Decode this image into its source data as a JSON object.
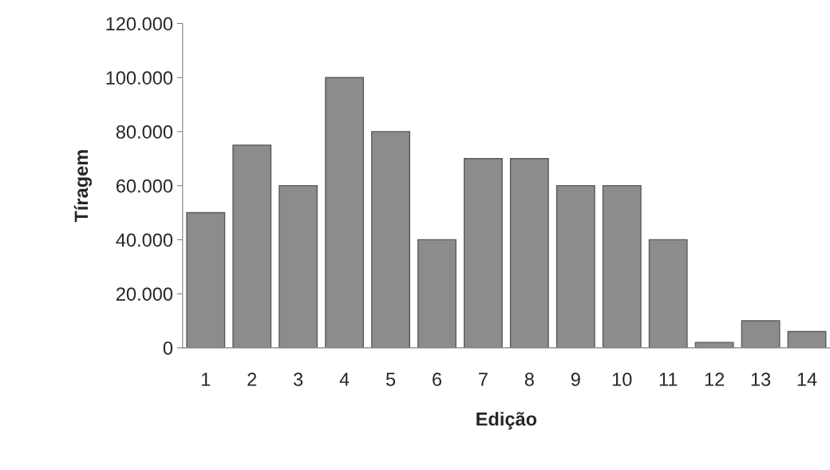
{
  "chart_data": {
    "type": "bar",
    "xlabel": "Edição",
    "ylabel": "Tíragem",
    "categories": [
      "1",
      "2",
      "3",
      "4",
      "5",
      "6",
      "7",
      "8",
      "9",
      "10",
      "11",
      "12",
      "13",
      "14"
    ],
    "values": [
      50000,
      75000,
      60000,
      100000,
      80000,
      40000,
      70000,
      70000,
      60000,
      60000,
      40000,
      2000,
      10000,
      6000
    ],
    "color": "#8c8c8c",
    "ylim": [
      0,
      120000
    ],
    "yticks": [
      0,
      {
        "value": 20000,
        "label": "20.000"
      },
      {
        "value": 40000,
        "label": "40.000"
      },
      {
        "value": 60000,
        "label": "60.000"
      },
      {
        "value": 80000,
        "label": "80.000"
      },
      {
        "value": 100000,
        "label": "100.000"
      },
      {
        "value": 120000,
        "label": "120.000"
      }
    ],
    "grid": false,
    "legend": false
  }
}
